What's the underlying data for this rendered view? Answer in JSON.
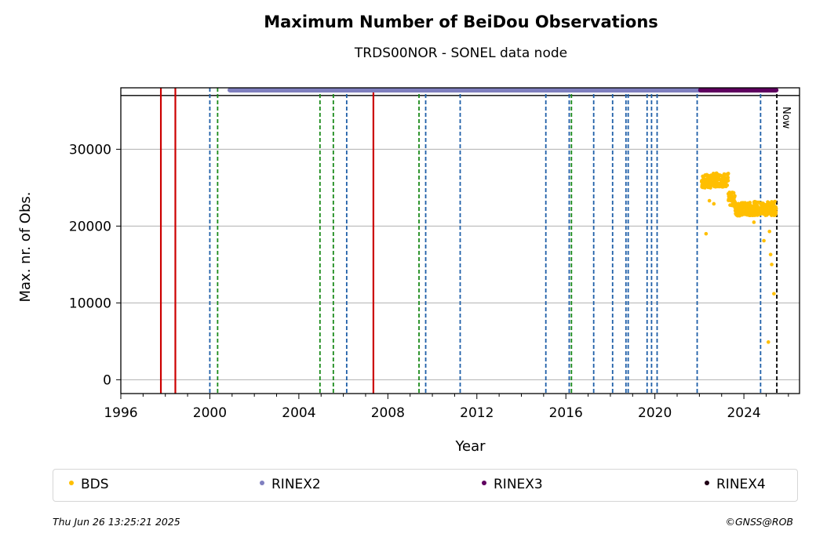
{
  "chart_data": {
    "type": "scatter",
    "title": "Maximum Number of BeiDou Observations",
    "subtitle": "TRDS00NOR - SONEL data node",
    "xlabel": "Year",
    "ylabel": "Max. nr. of Obs.",
    "xlim": [
      1996,
      2026.5
    ],
    "ylim": [
      -1800,
      38000
    ],
    "x_ticks": [
      "1996",
      "2000",
      "2004",
      "2008",
      "2012",
      "2016",
      "2020",
      "2024"
    ],
    "y_ticks": [
      "0",
      "10000",
      "20000",
      "30000"
    ],
    "grid": "horizontal",
    "legend_placement": "bottom",
    "now_label": "Now",
    "now_year": 2025.48,
    "top_reference_line": 37000,
    "red_event_lines": [
      1997.8,
      1998.45,
      2007.35
    ],
    "green_event_lines": [
      2000.35,
      2004.95,
      2005.55,
      2009.4,
      2016.25
    ],
    "blue_event_lines": [
      2000.0,
      2006.15,
      2009.7,
      2011.25,
      2015.1,
      2016.15,
      2017.25,
      2018.1,
      2018.7,
      2018.8,
      2019.65,
      2019.85,
      2020.1,
      2021.9,
      2024.75
    ],
    "series": [
      {
        "name": "BDS",
        "color": "#ffbf00",
        "segments": [
          {
            "x0": 2022.1,
            "x1": 2022.6,
            "y": 25800
          },
          {
            "x0": 2022.6,
            "x1": 2023.3,
            "y": 26000
          },
          {
            "x0": 2023.3,
            "x1": 2023.6,
            "y": 23500
          },
          {
            "x0": 2023.6,
            "x1": 2024.3,
            "y": 22200
          },
          {
            "x0": 2024.3,
            "x1": 2025.45,
            "y": 22300
          }
        ],
        "outliers": [
          {
            "x": 2022.3,
            "y": 19000
          },
          {
            "x": 2022.45,
            "y": 23300
          },
          {
            "x": 2022.65,
            "y": 22900
          },
          {
            "x": 2024.45,
            "y": 20500
          },
          {
            "x": 2024.9,
            "y": 18100
          },
          {
            "x": 2025.15,
            "y": 19300
          },
          {
            "x": 2025.2,
            "y": 16300
          },
          {
            "x": 2025.25,
            "y": 15000
          },
          {
            "x": 2025.35,
            "y": 11200
          },
          {
            "x": 2025.1,
            "y": 4900
          }
        ]
      },
      {
        "name": "RINEX2",
        "color": "#7f7fbf",
        "x0": 2000.9,
        "x1": 2022.05,
        "y": 37700
      },
      {
        "name": "RINEX3",
        "color": "#5f005f",
        "x0": 2022.05,
        "x1": 2025.45,
        "y": 37700
      },
      {
        "name": "RINEX4",
        "color": "#1f0015"
      }
    ]
  },
  "legend": {
    "bds": "BDS",
    "rinex2": "RINEX2",
    "rinex3": "RINEX3",
    "rinex4": "RINEX4"
  },
  "footer": {
    "timestamp": "Thu Jun 26 13:25:21 2025",
    "copyright": "©GNSS@ROB"
  }
}
